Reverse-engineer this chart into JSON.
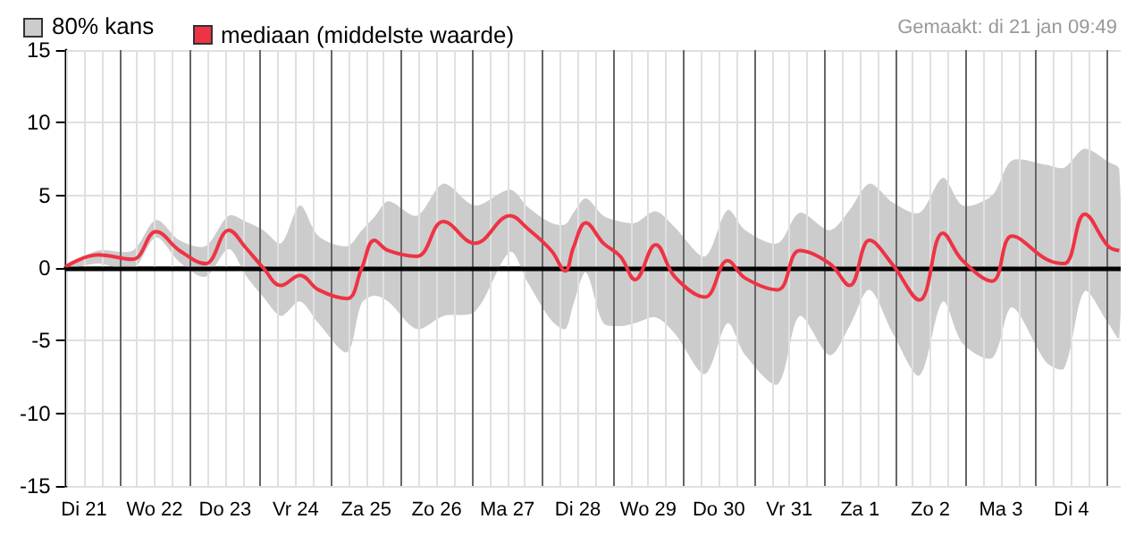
{
  "chart_data": {
    "type": "line",
    "annotations": [
      "80% kans",
      "Gemaakt: di 21 jan 09:49"
    ],
    "xlim": [
      "--01-21T05:30",
      "--02-05T04:45"
    ],
    "ylim": [
      -15,
      15
    ],
    "yticks": [
      -15,
      -10,
      -5,
      0,
      5,
      10,
      15
    ],
    "xticks": [
      {
        "value": "--01-21T06:00",
        "label": null
      },
      {
        "value": "--01-21T12:00",
        "label": "Di 21"
      },
      {
        "value": "--01-21T18:00",
        "label": null
      },
      {
        "value": "--01-22T06:00",
        "label": null
      },
      {
        "value": "--01-22T12:00",
        "label": "Wo 22"
      },
      {
        "value": "--01-22T18:00",
        "label": null
      },
      {
        "value": "--01-23T06:00",
        "label": null
      },
      {
        "value": "--01-23T12:00",
        "label": "Do 23"
      },
      {
        "value": "--01-23T18:00",
        "label": null
      },
      {
        "value": "--01-24T06:00",
        "label": null
      },
      {
        "value": "--01-24T12:00",
        "label": "Vr 24"
      },
      {
        "value": "--01-24T18:00",
        "label": null
      },
      {
        "value": "--01-25T06:00",
        "label": null
      },
      {
        "value": "--01-25T12:00",
        "label": "Za 25"
      },
      {
        "value": "--01-25T18:00",
        "label": null
      },
      {
        "value": "--01-26T06:00",
        "label": null
      },
      {
        "value": "--01-26T12:00",
        "label": "Zo 26"
      },
      {
        "value": "--01-26T18:00",
        "label": null
      },
      {
        "value": "--01-27T06:00",
        "label": null
      },
      {
        "value": "--01-27T12:00",
        "label": "Ma 27"
      },
      {
        "value": "--01-27T18:00",
        "label": null
      },
      {
        "value": "--01-28T06:00",
        "label": null
      },
      {
        "value": "--01-28T12:00",
        "label": "Di 28"
      },
      {
        "value": "--01-28T18:00",
        "label": null
      },
      {
        "value": "--01-29T06:00",
        "label": null
      },
      {
        "value": "--01-29T12:00",
        "label": "Wo 29"
      },
      {
        "value": "--01-29T18:00",
        "label": null
      },
      {
        "value": "--01-30T06:00",
        "label": null
      },
      {
        "value": "--01-30T12:00",
        "label": "Do 30"
      },
      {
        "value": "--01-30T18:00",
        "label": null
      },
      {
        "value": "--01-31T06:00",
        "label": null
      },
      {
        "value": "--01-31T12:00",
        "label": "Vr 31"
      },
      {
        "value": "--01-31T18:00",
        "label": null
      },
      {
        "value": "--02-01T06:00",
        "label": null
      },
      {
        "value": "--02-01T12:00",
        "label": "Za 1"
      },
      {
        "value": "--02-01T18:00",
        "label": null
      },
      {
        "value": "--02-02T06:00",
        "label": null
      },
      {
        "value": "--02-02T12:00",
        "label": "Zo 2"
      },
      {
        "value": "--02-02T18:00",
        "label": null
      },
      {
        "value": "--02-03T06:00",
        "label": null
      },
      {
        "value": "--02-03T12:00",
        "label": "Ma 3"
      },
      {
        "value": "--02-03T18:00",
        "label": null
      },
      {
        "value": "--02-04T06:00",
        "label": null
      },
      {
        "value": "--02-04T12:00",
        "label": "Di 4"
      },
      {
        "value": "--02-04T18:00",
        "label": null
      }
    ],
    "grid": true,
    "legend": "top left",
    "marker": "none",
    "line_style": "solid",
    "ref_lines": [
      {
        "axis": "y",
        "value": 0,
        "color": "#000000"
      },
      {
        "axis": "x",
        "value": "--01-22",
        "color": "#666666"
      },
      {
        "axis": "x",
        "value": "--01-23",
        "color": "#666666"
      },
      {
        "axis": "x",
        "value": "--01-24",
        "color": "#666666"
      },
      {
        "axis": "x",
        "value": "--01-25",
        "color": "#666666"
      },
      {
        "axis": "x",
        "value": "--01-26",
        "color": "#666666"
      },
      {
        "axis": "x",
        "value": "--01-27",
        "color": "#666666"
      },
      {
        "axis": "x",
        "value": "--01-28",
        "color": "#666666"
      },
      {
        "axis": "x",
        "value": "--01-29",
        "color": "#666666"
      },
      {
        "axis": "x",
        "value": "--01-30",
        "color": "#666666"
      },
      {
        "axis": "x",
        "value": "--01-31",
        "color": "#666666"
      },
      {
        "axis": "x",
        "value": "--02-01",
        "color": "#666666"
      },
      {
        "axis": "x",
        "value": "--02-02",
        "color": "#666666"
      },
      {
        "axis": "x",
        "value": "--02-03",
        "color": "#666666"
      },
      {
        "axis": "x",
        "value": "--02-04",
        "color": "#666666"
      },
      {
        "axis": "x",
        "value": "--02-05",
        "color": "#666666"
      }
    ],
    "series": [
      {
        "name": "mediaan (middelste waarde)",
        "color": "#ee3344",
        "lower": [
          -0.1,
          0.3,
          -0.1,
          2.1,
          0.4,
          -0.6,
          1.3,
          -0.5,
          -2.0,
          -3.3,
          -2.3,
          -3.8,
          -5.8,
          -2.4,
          -1.9,
          -2.3,
          -4.2,
          -3.3,
          -3.0,
          1.1,
          -1.0,
          -3.6,
          -4.2,
          -2.5,
          -0.3,
          -3.8,
          -4.0,
          -3.8,
          -3.4,
          -4.5,
          -7.3,
          -3.8,
          -6.0,
          -8.0,
          -3.3,
          -6.0,
          -4.0,
          -1.5,
          -4.5,
          -7.4,
          -2.3,
          -5.2,
          -6.2,
          -2.7,
          -6.5,
          -6.9,
          -1.6,
          -3.8,
          -4.8
        ],
        "upper": [
          0.1,
          1.2,
          1.2,
          3.3,
          1.9,
          1.5,
          3.6,
          3.2,
          2.6,
          1.7,
          4.3,
          2.2,
          1.5,
          2.6,
          3.5,
          4.6,
          3.6,
          5.8,
          4.3,
          5.4,
          4.2,
          3.1,
          3.0,
          3.8,
          4.8,
          3.6,
          3.2,
          3.1,
          3.9,
          2.8,
          0.8,
          4.0,
          2.6,
          1.7,
          3.8,
          2.6,
          4.0,
          5.8,
          4.5,
          3.8,
          6.2,
          4.3,
          5.0,
          7.4,
          7.1,
          6.9,
          8.2,
          7.3,
          6.8
        ],
        "x": [
          "--01-21T05:45",
          "--01-21T16:45",
          "--01-22T04:30",
          "--01-22T12:30",
          "--01-22T20:30",
          "--01-23T05:15",
          "--01-23T13:15",
          "--01-23T19:00",
          "--01-24T01:00",
          "--01-24T07:00",
          "--01-24T13:30",
          "--01-24T19:45",
          "--01-25T05:30",
          "--01-25T10:30",
          "--01-25T14:45",
          "--01-25T19:30",
          "--01-26T05:15",
          "--01-26T14:15",
          "--01-27T01:00",
          "--01-27T13:00",
          "--01-27T19:00",
          "--01-28T03:00",
          "--01-28T07:45",
          "--01-28T10:30",
          "--01-28T14:45",
          "--01-28T20:45",
          "--01-29T02:30",
          "--01-29T07:30",
          "--01-29T14:30",
          "--01-29T21:00",
          "--01-30T07:15",
          "--01-30T15:00",
          "--01-30T21:00",
          "--01-31T08:00",
          "--01-31T15:30",
          "--02-01T01:45",
          "--02-01T08:30",
          "--02-01T15:15",
          "--02-01T23:15",
          "--02-02T08:15",
          "--02-02T16:15",
          "--02-02T23:00",
          "--02-03T09:00",
          "--02-03T15:45",
          "--02-04T03:30",
          "--02-04T09:30",
          "--02-04T16:30",
          "--02-05T00:30",
          "--02-05T04:15"
        ],
        "values": [
          0.1,
          0.9,
          0.6,
          2.5,
          1.2,
          0.3,
          2.6,
          1.4,
          0.0,
          -1.2,
          -0.5,
          -1.5,
          -2.1,
          0.0,
          1.9,
          1.2,
          0.8,
          3.2,
          1.7,
          3.6,
          2.7,
          1.2,
          -0.2,
          1.4,
          3.1,
          1.7,
          0.8,
          -0.8,
          1.6,
          -0.6,
          -2.0,
          0.5,
          -0.7,
          -1.5,
          1.2,
          0.3,
          -1.2,
          1.9,
          0.2,
          -2.2,
          2.4,
          0.5,
          -0.9,
          2.2,
          0.6,
          0.3,
          3.7,
          1.5,
          1.2
        ]
      }
    ]
  }
}
